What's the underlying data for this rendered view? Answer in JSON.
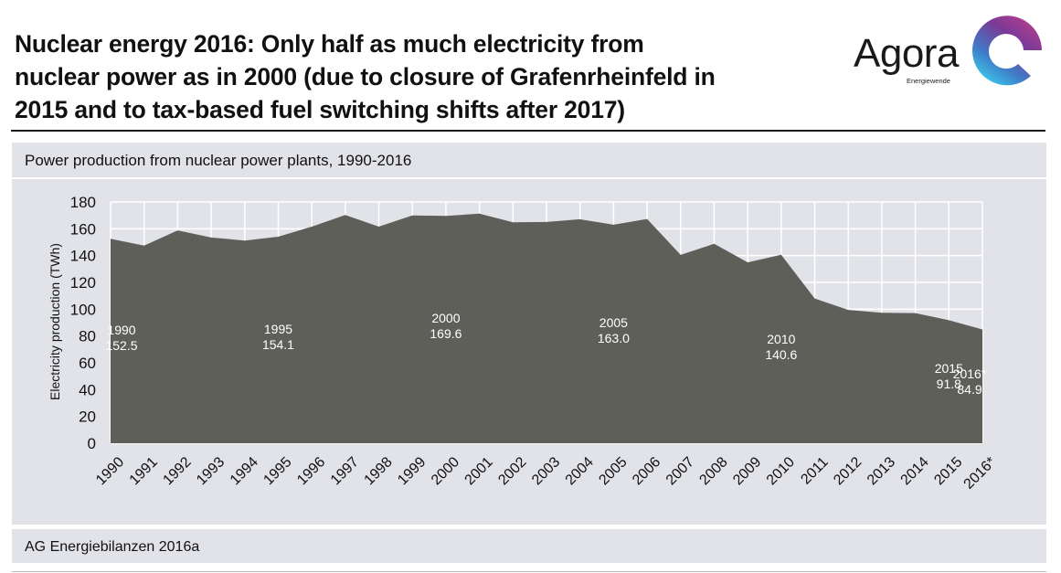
{
  "header": {
    "title_lines": [
      "Nuclear energy 2016: Only half as much electricity from",
      "nuclear power as in 2000 (due to closure of Grafenrheinfeld in",
      "2015 and to tax-based fuel switching shifts after 2017)"
    ]
  },
  "logo": {
    "name": "Agora",
    "subtitle": "Energiewende",
    "icon": "agora-ring-logo-icon",
    "colors": {
      "magenta": "#c8408e",
      "purple": "#7a3a96",
      "blue": "#3f7cc8",
      "cyan": "#3cc2e8"
    }
  },
  "panel": {
    "subtitle": "Power production from nuclear power plants, 1990-2016",
    "source": "AG Energiebilanzen 2016a"
  },
  "colors": {
    "area_fill": "#5f5f5a",
    "panel_bg": "#e2e3e8",
    "gridline": "#ffffff",
    "label_text": "#ffffff"
  },
  "chart_data": {
    "type": "area",
    "title": "Power production from nuclear power plants, 1990-2016",
    "xlabel": "",
    "ylabel": "Electricity production (TWh)",
    "ylim": [
      0,
      180
    ],
    "yticks": [
      0,
      20,
      40,
      60,
      80,
      100,
      120,
      140,
      160,
      180
    ],
    "grid": true,
    "legend": "none",
    "categories": [
      "1990",
      "1991",
      "1992",
      "1993",
      "1994",
      "1995",
      "1996",
      "1997",
      "1998",
      "1999",
      "2000",
      "2001",
      "2002",
      "2003",
      "2004",
      "2005",
      "2006",
      "2007",
      "2008",
      "2009",
      "2010",
      "2011",
      "2012",
      "2013",
      "2014",
      "2015",
      "2016*"
    ],
    "series": [
      {
        "name": "Nuclear power production",
        "values": [
          152.5,
          147.4,
          158.8,
          153.5,
          151.2,
          154.1,
          161.6,
          170.3,
          161.6,
          170.0,
          169.6,
          171.3,
          164.8,
          165.1,
          167.1,
          163.0,
          167.3,
          140.5,
          148.8,
          134.9,
          140.6,
          108.0,
          99.5,
          97.3,
          97.1,
          91.8,
          84.9
        ]
      }
    ],
    "annotations": [
      {
        "category": "1990",
        "year_label": "1990",
        "value_label": "152.5"
      },
      {
        "category": "1995",
        "year_label": "1995",
        "value_label": "154.1"
      },
      {
        "category": "2000",
        "year_label": "2000",
        "value_label": "169.6"
      },
      {
        "category": "2005",
        "year_label": "2005",
        "value_label": "163.0"
      },
      {
        "category": "2010",
        "year_label": "2010",
        "value_label": "140.6"
      },
      {
        "category": "2015",
        "year_label": "2015",
        "value_label": "91.8"
      },
      {
        "category": "2016*",
        "year_label": "2016*",
        "value_label": "84.9"
      }
    ]
  }
}
